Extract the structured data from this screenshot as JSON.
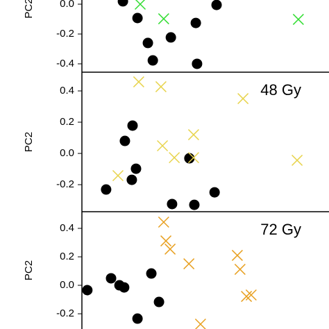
{
  "chart_data": [
    {
      "type": "scatter",
      "y_label": "PC2",
      "xlim": [
        0,
        10
      ],
      "ylim": [
        -0.456,
        0.028
      ],
      "yticks": [
        {
          "value": 0,
          "label": "0.0"
        },
        -0.2,
        -0.4
      ],
      "series": [
        {
          "marker": "circle",
          "color": "#000000",
          "x": [
            1.66,
            2.25,
            2.67,
            2.87,
            3.6,
            4.61,
            4.66,
            5.45
          ],
          "values": [
            0.019,
            -0.093,
            -0.26,
            -0.377,
            -0.223,
            -0.126,
            -0.4,
            -0.005
          ]
        },
        {
          "marker": "x",
          "color": "#33dd33",
          "x": [
            2.36,
            3.31,
            8.76
          ],
          "values": [
            0.0,
            -0.098,
            -0.102
          ]
        }
      ]
    },
    {
      "type": "scatter",
      "title": "48 Gy",
      "y_label": "PC2",
      "xlim": [
        0,
        10
      ],
      "ylim": [
        -0.373,
        0.52
      ],
      "yticks": [
        0.4,
        0.2,
        {
          "value": 0,
          "label": "0.0"
        },
        -0.2
      ],
      "series": [
        {
          "marker": "circle",
          "color": "#000000",
          "x": [
            0.98,
            1.74,
            2.05,
            2.19,
            2.02,
            4.35,
            3.65,
            4.55,
            5.37
          ],
          "values": [
            -0.231,
            0.08,
            0.178,
            -0.098,
            -0.169,
            -0.031,
            -0.324,
            -0.329,
            -0.249
          ]
        },
        {
          "marker": "x",
          "color": "#e8d44d",
          "x": [
            2.3,
            3.2,
            6.52,
            3.26,
            3.74,
            4.52,
            4.52,
            1.46,
            8.71
          ],
          "values": [
            0.458,
            0.427,
            0.351,
            0.049,
            -0.027,
            0.12,
            -0.027,
            -0.142,
            -0.044
          ]
        }
      ]
    },
    {
      "type": "scatter",
      "title": "72 Gy",
      "y_label": "PC2",
      "xlim": [
        0,
        10
      ],
      "ylim": [
        -0.307,
        0.517
      ],
      "yticks": [
        0.4,
        0.2,
        {
          "value": 0,
          "label": "0.0"
        },
        -0.2
      ],
      "series": [
        {
          "marker": "circle",
          "color": "#000000",
          "x": [
            0.22,
            1.18,
            1.52,
            1.71,
            2.81,
            3.12,
            2.25
          ],
          "values": [
            -0.034,
            0.049,
            0.0,
            -0.015,
            0.083,
            -0.117,
            -0.234
          ]
        },
        {
          "marker": "x",
          "color": "#e8a020",
          "x": [
            3.31,
            3.4,
            3.57,
            4.33,
            6.29,
            6.4,
            6.66,
            6.85,
            4.8
          ],
          "values": [
            0.444,
            0.312,
            0.254,
            0.151,
            0.21,
            0.112,
            -0.078,
            -0.068,
            -0.273
          ]
        }
      ]
    }
  ]
}
